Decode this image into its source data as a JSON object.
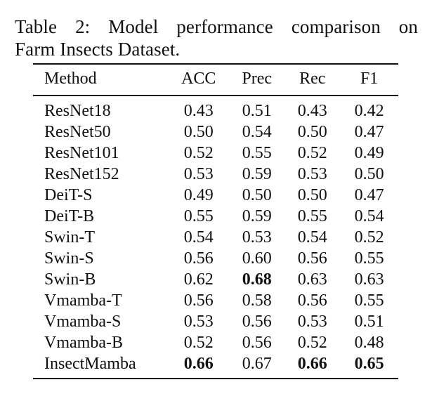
{
  "caption": {
    "line1": "Table 2:  Model performance comparison on",
    "line2": "Farm Insects Dataset."
  },
  "table": {
    "headers": [
      "Method",
      "ACC",
      "Prec",
      "Rec",
      "F1"
    ],
    "rows": [
      {
        "method": "ResNet18",
        "acc": "0.43",
        "prec": "0.51",
        "rec": "0.43",
        "f1": "0.42"
      },
      {
        "method": "ResNet50",
        "acc": "0.50",
        "prec": "0.54",
        "rec": "0.50",
        "f1": "0.47"
      },
      {
        "method": "ResNet101",
        "acc": "0.52",
        "prec": "0.55",
        "rec": "0.52",
        "f1": "0.49"
      },
      {
        "method": "ResNet152",
        "acc": "0.53",
        "prec": "0.59",
        "rec": "0.53",
        "f1": "0.50"
      },
      {
        "method": "DeiT-S",
        "acc": "0.49",
        "prec": "0.50",
        "rec": "0.50",
        "f1": "0.47"
      },
      {
        "method": "DeiT-B",
        "acc": "0.55",
        "prec": "0.59",
        "rec": "0.55",
        "f1": "0.54"
      },
      {
        "method": "Swin-T",
        "acc": "0.54",
        "prec": "0.53",
        "rec": "0.54",
        "f1": "0.52"
      },
      {
        "method": "Swin-S",
        "acc": "0.56",
        "prec": "0.60",
        "rec": "0.56",
        "f1": "0.55"
      },
      {
        "method": "Swin-B",
        "acc": "0.62",
        "prec": "0.68",
        "rec": "0.63",
        "f1": "0.63"
      },
      {
        "method": "Vmamba-T",
        "acc": "0.56",
        "prec": "0.58",
        "rec": "0.56",
        "f1": "0.55"
      },
      {
        "method": "Vmamba-S",
        "acc": "0.53",
        "prec": "0.56",
        "rec": "0.53",
        "f1": "0.51"
      },
      {
        "method": "Vmamba-B",
        "acc": "0.52",
        "prec": "0.56",
        "rec": "0.52",
        "f1": "0.48"
      },
      {
        "method": "InsectMamba",
        "acc": "0.66",
        "prec": "0.67",
        "rec": "0.66",
        "f1": "0.65"
      }
    ],
    "bold_cells": [
      "8.prec",
      "12.acc",
      "12.rec",
      "12.f1"
    ]
  }
}
